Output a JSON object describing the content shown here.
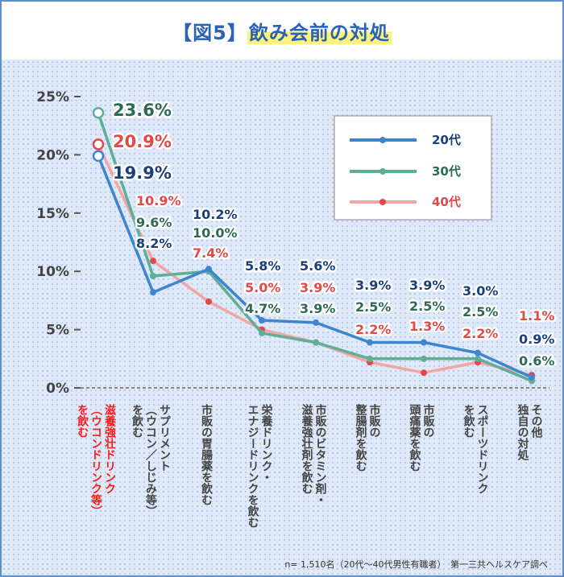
{
  "title": {
    "bracket": "【図5】",
    "main": "飲み会前の対処"
  },
  "footnote": "n= 1,510名（20代～40代男性有職者）　第一三共ヘルスケア調べ",
  "colors": {
    "s20": "#3d86cf",
    "s30": "#5fae98",
    "s40": "#f2a5a5",
    "label20": "#1b3f7a",
    "label30": "#2d6a56",
    "label40": "#e04a4a",
    "highlight_category": "#ff1a1a",
    "category": "#444444"
  },
  "chart_data": {
    "type": "line",
    "ylim": [
      0,
      25
    ],
    "yticks": [
      0,
      5,
      10,
      15,
      20,
      25
    ],
    "ytick_labels": [
      "0%",
      "5%",
      "10%",
      "15%",
      "20%",
      "25%"
    ],
    "legend_position": "top-right",
    "categories": [
      [
        "滋養強壮ドリンク",
        "（ウコンドリンク等）",
        "を飲む"
      ],
      [
        "サプリメント",
        "（ウコン／しじみ等）",
        "を飲む"
      ],
      [
        "市販の胃腸薬を飲む"
      ],
      [
        "栄養ドリンク・",
        "エナジードリンクを飲む"
      ],
      [
        "市販のビタミン剤・",
        "滋養強壮剤を飲む"
      ],
      [
        "市販の",
        "整腸剤を飲む"
      ],
      [
        "市販の",
        "頭痛薬を飲む"
      ],
      [
        "スポーツドリンク",
        "を飲む"
      ],
      [
        "その他",
        "独自の対処"
      ]
    ],
    "series": [
      {
        "name": "20代",
        "values": [
          19.9,
          8.2,
          10.2,
          5.8,
          5.6,
          3.9,
          3.9,
          3.0,
          0.9
        ],
        "labels": [
          "19.9%",
          "8.2%",
          "10.2%",
          "5.8%",
          "5.6%",
          "3.9%",
          "3.9%",
          "3.0%",
          "0.9%"
        ]
      },
      {
        "name": "30代",
        "values": [
          23.6,
          9.6,
          10.0,
          4.7,
          3.9,
          2.5,
          2.5,
          2.5,
          0.6
        ],
        "labels": [
          "23.6%",
          "9.6%",
          "10.0%",
          "4.7%",
          "3.9%",
          "2.5%",
          "2.5%",
          "2.5%",
          "0.6%"
        ]
      },
      {
        "name": "40代",
        "values": [
          20.9,
          10.9,
          7.4,
          5.0,
          3.9,
          2.2,
          1.3,
          2.2,
          1.1
        ],
        "labels": [
          "20.9%",
          "10.9%",
          "7.4%",
          "5.0%",
          "3.9%",
          "2.2%",
          "1.3%",
          "2.2%",
          "1.1%"
        ]
      }
    ]
  }
}
